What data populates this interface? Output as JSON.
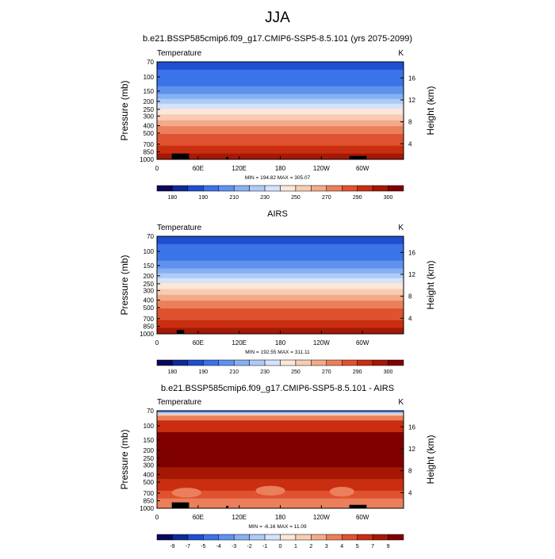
{
  "page": {
    "title": "JJA"
  },
  "chart_data": [
    {
      "type": "heatmap",
      "title": "b.e21.BSSP585cmip6.f09_g17.CMIP6-SSP5-8.5.101 (yrs 2075-2099)",
      "left_title": "Temperature",
      "units": "K",
      "ylabel": "Pressure (mb)",
      "y2label": "Height (km)",
      "x_ticks": [
        "0",
        "60E",
        "120E",
        "180",
        "120W",
        "60W"
      ],
      "y_ticks": [
        "70",
        "100",
        "150",
        "200",
        "250",
        "300",
        "400",
        "500",
        "700",
        "850",
        "1000"
      ],
      "y2_ticks": [
        "16",
        "12",
        "8",
        "4"
      ],
      "stats": "MIN = 194.82  MAX = 305.07",
      "colorbar_labels": [
        "180",
        "190",
        "210",
        "230",
        "250",
        "270",
        "290",
        "300"
      ],
      "colors": [
        "#08085e",
        "#0d2b99",
        "#1f4fd0",
        "#3b73e8",
        "#5e92ef",
        "#86b0f3",
        "#aecbf7",
        "#d3e3fb",
        "#fbe6d8",
        "#f8ccb3",
        "#f3a98a",
        "#ec7f5b",
        "#e0522f",
        "#c92e10",
        "#a51805",
        "#800000"
      ]
    },
    {
      "type": "heatmap",
      "title": "AIRS",
      "left_title": "Temperature",
      "units": "K",
      "ylabel": "Pressure (mb)",
      "y2label": "Height (km)",
      "x_ticks": [
        "0",
        "60E",
        "120E",
        "180",
        "120W",
        "60W"
      ],
      "y_ticks": [
        "70",
        "100",
        "150",
        "200",
        "250",
        "300",
        "400",
        "500",
        "700",
        "850",
        "1000"
      ],
      "y2_ticks": [
        "16",
        "12",
        "8",
        "4"
      ],
      "stats": "MIN = 192.55  MAX = 311.11",
      "colorbar_labels": [
        "180",
        "190",
        "210",
        "230",
        "250",
        "270",
        "290",
        "300"
      ],
      "colors": [
        "#08085e",
        "#0d2b99",
        "#1f4fd0",
        "#3b73e8",
        "#5e92ef",
        "#86b0f3",
        "#aecbf7",
        "#d3e3fb",
        "#fbe6d8",
        "#f8ccb3",
        "#f3a98a",
        "#ec7f5b",
        "#e0522f",
        "#c92e10",
        "#a51805",
        "#800000"
      ]
    },
    {
      "type": "heatmap",
      "title": "b.e21.BSSP585cmip6.f09_g17.CMIP6-SSP5-8.5.101 - AIRS",
      "left_title": "Temperature",
      "units": "K",
      "ylabel": "Pressure (mb)",
      "y2label": "Height (km)",
      "x_ticks": [
        "0",
        "60E",
        "120E",
        "180",
        "120W",
        "60W"
      ],
      "y_ticks": [
        "70",
        "100",
        "150",
        "200",
        "250",
        "300",
        "400",
        "500",
        "700",
        "850",
        "1000"
      ],
      "y2_ticks": [
        "16",
        "12",
        "8",
        "4"
      ],
      "stats": "MIN = -6.16  MAX = 11.09",
      "colorbar_labels": [
        "-9",
        "-7",
        "-5",
        "-4",
        "-3",
        "-2",
        "-1",
        "0",
        "1",
        "2",
        "3",
        "4",
        "5",
        "7",
        "9"
      ],
      "colors": [
        "#08085e",
        "#0d2b99",
        "#1f4fd0",
        "#3b73e8",
        "#5e92ef",
        "#86b0f3",
        "#aecbf7",
        "#d3e3fb",
        "#fbe6d8",
        "#f8ccb3",
        "#f3a98a",
        "#ec7f5b",
        "#e0522f",
        "#c92e10",
        "#a51805",
        "#800000"
      ]
    }
  ]
}
